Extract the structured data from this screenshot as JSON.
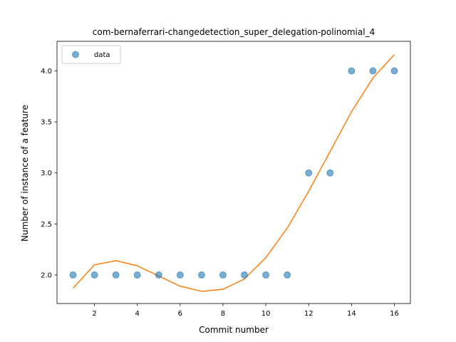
{
  "chart_data": {
    "type": "scatter",
    "title": "com-bernaferrari-changedetection_super_delegation-polinomial_4",
    "xlabel": "Commit number",
    "ylabel": "Number of instance of a feature",
    "xlim": [
      0.25,
      16.75
    ],
    "ylim": [
      1.72,
      4.29
    ],
    "xticks": [
      2,
      4,
      6,
      8,
      10,
      12,
      14,
      16
    ],
    "yticks": [
      2.0,
      2.5,
      3.0,
      3.5,
      4.0
    ],
    "ytick_labels": [
      "2.0",
      "2.5",
      "3.0",
      "3.5",
      "4.0"
    ],
    "legend_position": "upper-left",
    "series": [
      {
        "name": "data",
        "kind": "scatter",
        "color": "#1f77b4",
        "x": [
          1,
          2,
          3,
          4,
          5,
          6,
          7,
          8,
          9,
          10,
          11,
          12,
          13,
          14,
          15,
          16
        ],
        "y": [
          2,
          2,
          2,
          2,
          2,
          2,
          2,
          2,
          2,
          2,
          2,
          3,
          3,
          4,
          4,
          4
        ]
      },
      {
        "kind": "line",
        "color": "#ff7f0e",
        "x": [
          1,
          2,
          3,
          4,
          5,
          6,
          7,
          8,
          9,
          10,
          11,
          12,
          13,
          14,
          15,
          16
        ],
        "y": [
          1.87,
          2.1,
          2.14,
          2.09,
          1.99,
          1.89,
          1.84,
          1.86,
          1.96,
          2.17,
          2.46,
          2.82,
          3.21,
          3.6,
          3.93,
          4.16
        ]
      }
    ]
  }
}
